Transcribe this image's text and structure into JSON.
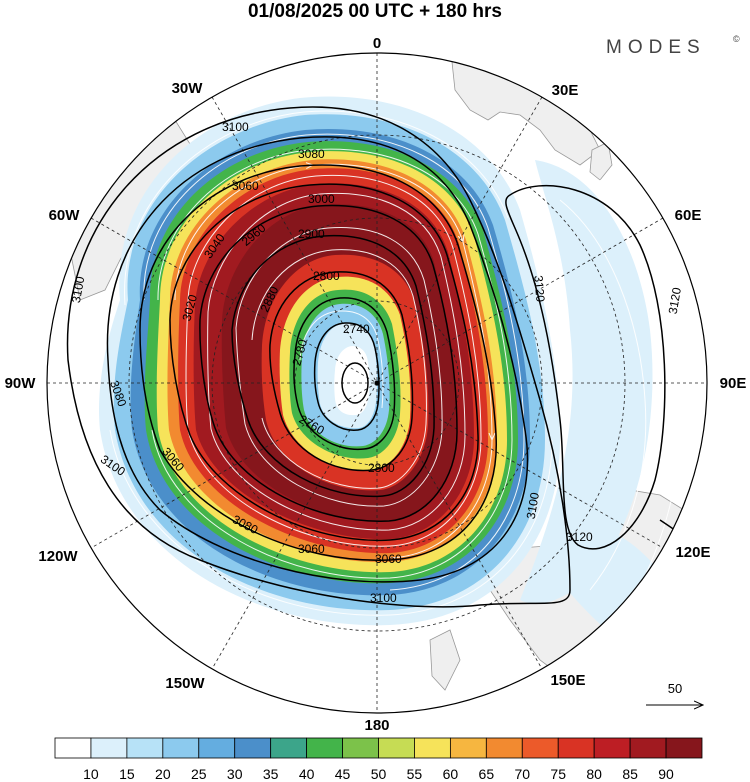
{
  "title": "01/08/2025  00 UTC  + 180 hrs",
  "brand": "MODES",
  "brand_mark": "©",
  "longitude_labels": {
    "n": "0",
    "ne": "30E",
    "e60": "60E",
    "e": "90E",
    "se120": "120E",
    "se150": "150E",
    "s": "180",
    "sw150": "150W",
    "sw120": "120W",
    "w": "90W",
    "w60": "60W",
    "nw30": "30W"
  },
  "contour_labels": {
    "c3100_nw": "3100",
    "c3100_w": "3100",
    "c3100_sw": "3100",
    "c3100_s": "3100",
    "c3080_n": "3080",
    "c3080_w": "3080",
    "c3080_sw": "3080",
    "c3060_n": "3060",
    "c3060_s": "3060",
    "c3060_s2": "3060",
    "c3040_w": "3040",
    "c3020_w": "3020",
    "c3000_n": "3000",
    "c2960_nw": "2960",
    "c2900_n": "2900",
    "c2880_w": "2880",
    "c2800_n": "2800",
    "c2800_s": "2800",
    "c2780_w": "2780",
    "c2740_c": "2740",
    "c2760_s": "2760",
    "c3120_e": "3120",
    "c3120_se": "3120",
    "c3120_ne": "3120",
    "c3100_e": "3100"
  },
  "wind_reference": {
    "label": "50"
  },
  "colorbar": {
    "labels": [
      "10",
      "15",
      "20",
      "25",
      "30",
      "35",
      "40",
      "45",
      "50",
      "55",
      "60",
      "65",
      "70",
      "75",
      "80",
      "85",
      "90"
    ],
    "colors": [
      "#ffffff",
      "#dcf0fb",
      "#b7e2f7",
      "#8ccaee",
      "#64ade0",
      "#4b8fca",
      "#3ca58a",
      "#43b44a",
      "#7cc24a",
      "#c6dc54",
      "#f6e35a",
      "#f6b640",
      "#f28a30",
      "#ec5a2a",
      "#d93324",
      "#bd1e24",
      "#a11a20",
      "#86161c"
    ]
  },
  "colors": {
    "land": "#efefef",
    "coast": "#999999",
    "contour": "#000000",
    "streamline": "#ffffff"
  }
}
